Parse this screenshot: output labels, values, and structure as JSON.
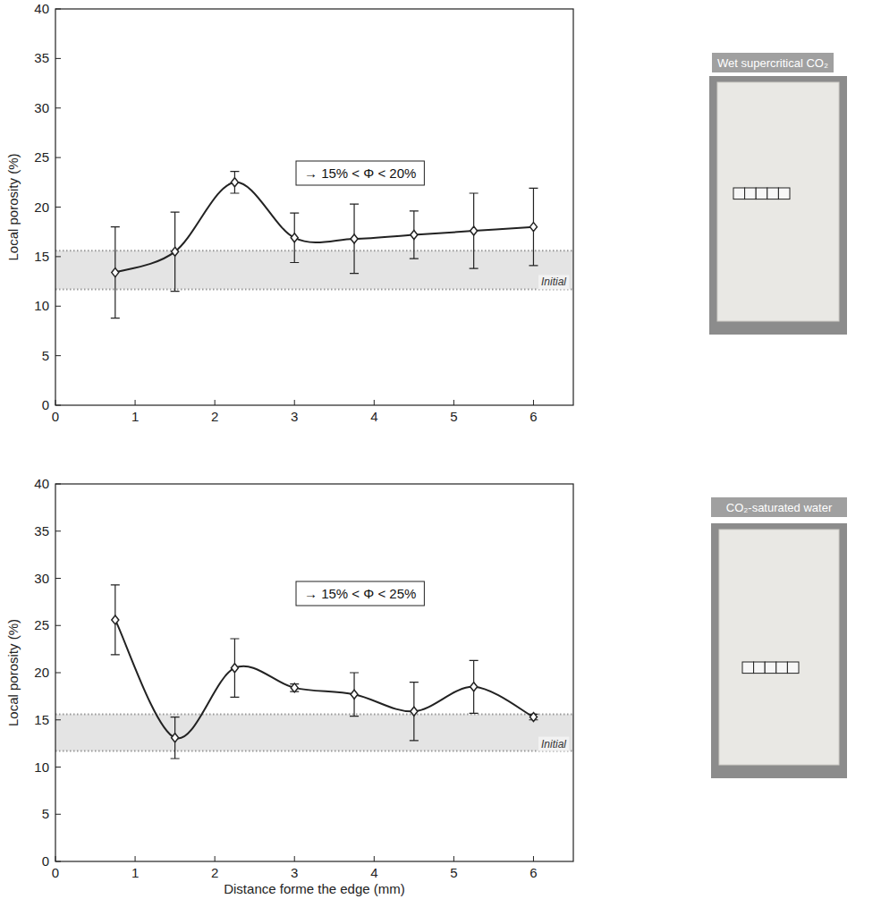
{
  "chart_data": [
    {
      "type": "line",
      "y_label": "Local porosity (%)",
      "x": [
        0.75,
        1.5,
        2.25,
        3,
        3.75,
        4.5,
        5.25,
        6
      ],
      "values": [
        13.4,
        15.5,
        22.5,
        16.9,
        16.8,
        17.2,
        17.6,
        18.0
      ],
      "errors": [
        4.6,
        4.0,
        1.1,
        2.5,
        3.5,
        2.4,
        3.8,
        3.9
      ],
      "color": "#222222",
      "marker": "diamond",
      "line_style": "solid",
      "xlim": [
        0,
        6.5
      ],
      "xticks": [
        0,
        1,
        2,
        3,
        4,
        5,
        6
      ],
      "ylim": [
        0,
        40
      ],
      "yticks": [
        0,
        5,
        10,
        15,
        20,
        25,
        30,
        35,
        40
      ],
      "initial_band": {
        "from": 11.7,
        "to": 15.6,
        "label": "Initial"
      },
      "annotations": [
        "→ 15% < Φ < 20%"
      ],
      "image_label": "Wet supercritical CO₂"
    },
    {
      "type": "line",
      "y_label": "Local porosity (%)",
      "x_label": "Distance forme the edge (mm)",
      "x": [
        0.75,
        1.5,
        2.25,
        3,
        3.75,
        4.5,
        5.25,
        6
      ],
      "values": [
        25.6,
        13.1,
        20.5,
        18.4,
        17.7,
        15.9,
        18.5,
        15.3
      ],
      "errors": [
        3.7,
        2.2,
        3.1,
        0.4,
        2.3,
        3.1,
        2.8,
        0.3
      ],
      "color": "#222222",
      "marker": "diamond",
      "line_style": "solid",
      "xlim": [
        0,
        6.5
      ],
      "xticks": [
        0,
        1,
        2,
        3,
        4,
        5,
        6
      ],
      "ylim": [
        0,
        40
      ],
      "yticks": [
        0,
        5,
        10,
        15,
        20,
        25,
        30,
        35,
        40
      ],
      "initial_band": {
        "from": 11.7,
        "to": 15.6,
        "label": "Initial"
      },
      "annotations": [
        "→ 15% < Φ < 25%"
      ],
      "image_label": "CO₂-saturated water"
    }
  ]
}
